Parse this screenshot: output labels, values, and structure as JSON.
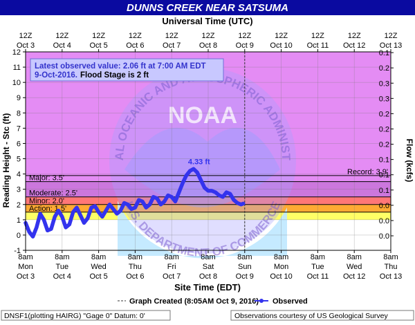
{
  "title": "DUNNS CREEK NEAR SATSUMA",
  "top_axis_title": "Universal Time (UTC)",
  "bottom_axis_title": "Site Time (EDT)",
  "left_axis_title": "Reading Height - Stc (ft)",
  "right_axis_title": "Flow (kcfs)",
  "info_box": {
    "line1": "Latest observed value: 2.06 ft at 7:00 AM EDT",
    "line2_date": "9-Oct-2016.",
    "line2_flood": "Flood Stage is 2 ft"
  },
  "footer": {
    "graph_created": "Graph Created (8:05AM Oct 9, 2016)",
    "observed_label": "Observed",
    "datum": "DNSF1(plotting HAIRG) \"Gage 0\" Datum: 0'",
    "courtesy": "Observations courtesy of US Geological Survey"
  },
  "watermark": {
    "text": "NOAA",
    "ring_top": "NATIONAL OCEANIC AND ATMOSPHERIC ADMINISTRATION",
    "ring_bottom": "U.S. DEPARTMENT OF COMMERCE"
  },
  "colors": {
    "title_bar": "#0a0aa0",
    "plot_bg": "#e48cf4",
    "major": "#cc77dd",
    "moderate": "#ff7777",
    "minor": "#ffaa33",
    "action": "#ffff66",
    "observed": "#3333ee"
  },
  "chart_data": {
    "type": "line",
    "ylim": [
      -1,
      12
    ],
    "right_axis": {
      "ticks": [
        {
          "label": "0.0",
          "y": -0.05
        },
        {
          "label": "0.0",
          "y": 0.95
        },
        {
          "label": "0.0",
          "y": 1.95
        },
        {
          "label": "0.1",
          "y": 2.95
        },
        {
          "label": "0.1",
          "y": 3.95
        },
        {
          "label": "0.1",
          "y": 4.95
        },
        {
          "label": "0.2",
          "y": 5.95
        },
        {
          "label": "0.2",
          "y": 6.95
        },
        {
          "label": "0.2",
          "y": 7.95
        },
        {
          "label": "0.3",
          "y": 8.95
        },
        {
          "label": "0.3",
          "y": 9.95
        },
        {
          "label": "0.2",
          "y": 10.95
        },
        {
          "label": "0.1",
          "y": 11.95
        }
      ],
      "extra_labels": [
        "0.1",
        "0.1",
        "0.2",
        "0.2",
        "0.1",
        "0.0",
        "0.0"
      ]
    },
    "left_ticks": [
      -1,
      0,
      1,
      2,
      3,
      4,
      5,
      6,
      7,
      8,
      9,
      10,
      11,
      12
    ],
    "utc_ticks": [
      [
        "12Z",
        "Oct 3"
      ],
      [
        "12Z",
        "Oct 4"
      ],
      [
        "12Z",
        "Oct 5"
      ],
      [
        "12Z",
        "Oct 6"
      ],
      [
        "12Z",
        "Oct 7"
      ],
      [
        "12Z",
        "Oct 8"
      ],
      [
        "12Z",
        "Oct 9"
      ],
      [
        "12Z",
        "Oct 10"
      ],
      [
        "12Z",
        "Oct 11"
      ],
      [
        "12Z",
        "Oct 12"
      ],
      [
        "12Z",
        "Oct 13"
      ]
    ],
    "local_ticks": [
      [
        "8am",
        "Mon",
        "Oct 3"
      ],
      [
        "8am",
        "Tue",
        "Oct 4"
      ],
      [
        "8am",
        "Wed",
        "Oct 5"
      ],
      [
        "8am",
        "Thu",
        "Oct 6"
      ],
      [
        "8am",
        "Fri",
        "Oct 7"
      ],
      [
        "8am",
        "Sat",
        "Oct 8"
      ],
      [
        "8am",
        "Sun",
        "Oct 9"
      ],
      [
        "8am",
        "Mon",
        "Oct 10"
      ],
      [
        "8am",
        "Tue",
        "Oct 11"
      ],
      [
        "8am",
        "Wed",
        "Oct 12"
      ],
      [
        "8am",
        "Thu",
        "Oct 13"
      ]
    ],
    "stages": [
      {
        "name": "Action",
        "label": "Action: 1.5'",
        "value": 1.5
      },
      {
        "name": "Minor",
        "label": "Minor: 2.0'",
        "value": 2.0
      },
      {
        "name": "Moderate",
        "label": "Moderate: 2.5'",
        "value": 2.5
      },
      {
        "name": "Major",
        "label": "Major: 3.5'",
        "value": 3.5
      },
      {
        "name": "Record",
        "label": "Record: 3.9'",
        "value": 3.9
      }
    ],
    "peak_label": "4.33 ft",
    "peak": {
      "day": 4.75,
      "value": 4.33
    },
    "graph_created_day": 6.0,
    "series": [
      {
        "name": "Observed",
        "x_days": [
          0.0,
          0.1,
          0.2,
          0.3,
          0.4,
          0.5,
          0.6,
          0.7,
          0.8,
          0.9,
          1.0,
          1.1,
          1.2,
          1.3,
          1.4,
          1.5,
          1.6,
          1.7,
          1.8,
          1.9,
          2.0,
          2.1,
          2.2,
          2.3,
          2.4,
          2.5,
          2.6,
          2.7,
          2.8,
          2.9,
          3.0,
          3.1,
          3.2,
          3.3,
          3.4,
          3.5,
          3.6,
          3.7,
          3.8,
          3.9,
          4.0,
          4.1,
          4.2,
          4.3,
          4.4,
          4.5,
          4.6,
          4.7,
          4.8,
          4.9,
          5.0,
          5.1,
          5.2,
          5.3,
          5.4,
          5.5,
          5.6,
          5.7,
          5.8,
          5.9,
          5.96
        ],
        "values": [
          0.8,
          0.2,
          -0.1,
          0.5,
          1.4,
          1.0,
          0.3,
          0.4,
          1.2,
          1.6,
          1.2,
          0.5,
          0.7,
          1.5,
          1.8,
          1.3,
          0.8,
          1.1,
          1.8,
          1.9,
          1.5,
          1.2,
          1.6,
          2.0,
          1.7,
          1.4,
          1.6,
          2.1,
          2.0,
          1.7,
          1.8,
          2.3,
          2.2,
          1.8,
          2.0,
          2.5,
          2.4,
          2.0,
          2.2,
          2.6,
          2.5,
          2.2,
          2.8,
          3.4,
          3.9,
          4.2,
          4.33,
          4.1,
          3.6,
          3.1,
          2.9,
          2.9,
          2.8,
          2.6,
          2.5,
          2.8,
          2.7,
          2.3,
          2.1,
          2.0,
          2.06
        ]
      }
    ]
  }
}
